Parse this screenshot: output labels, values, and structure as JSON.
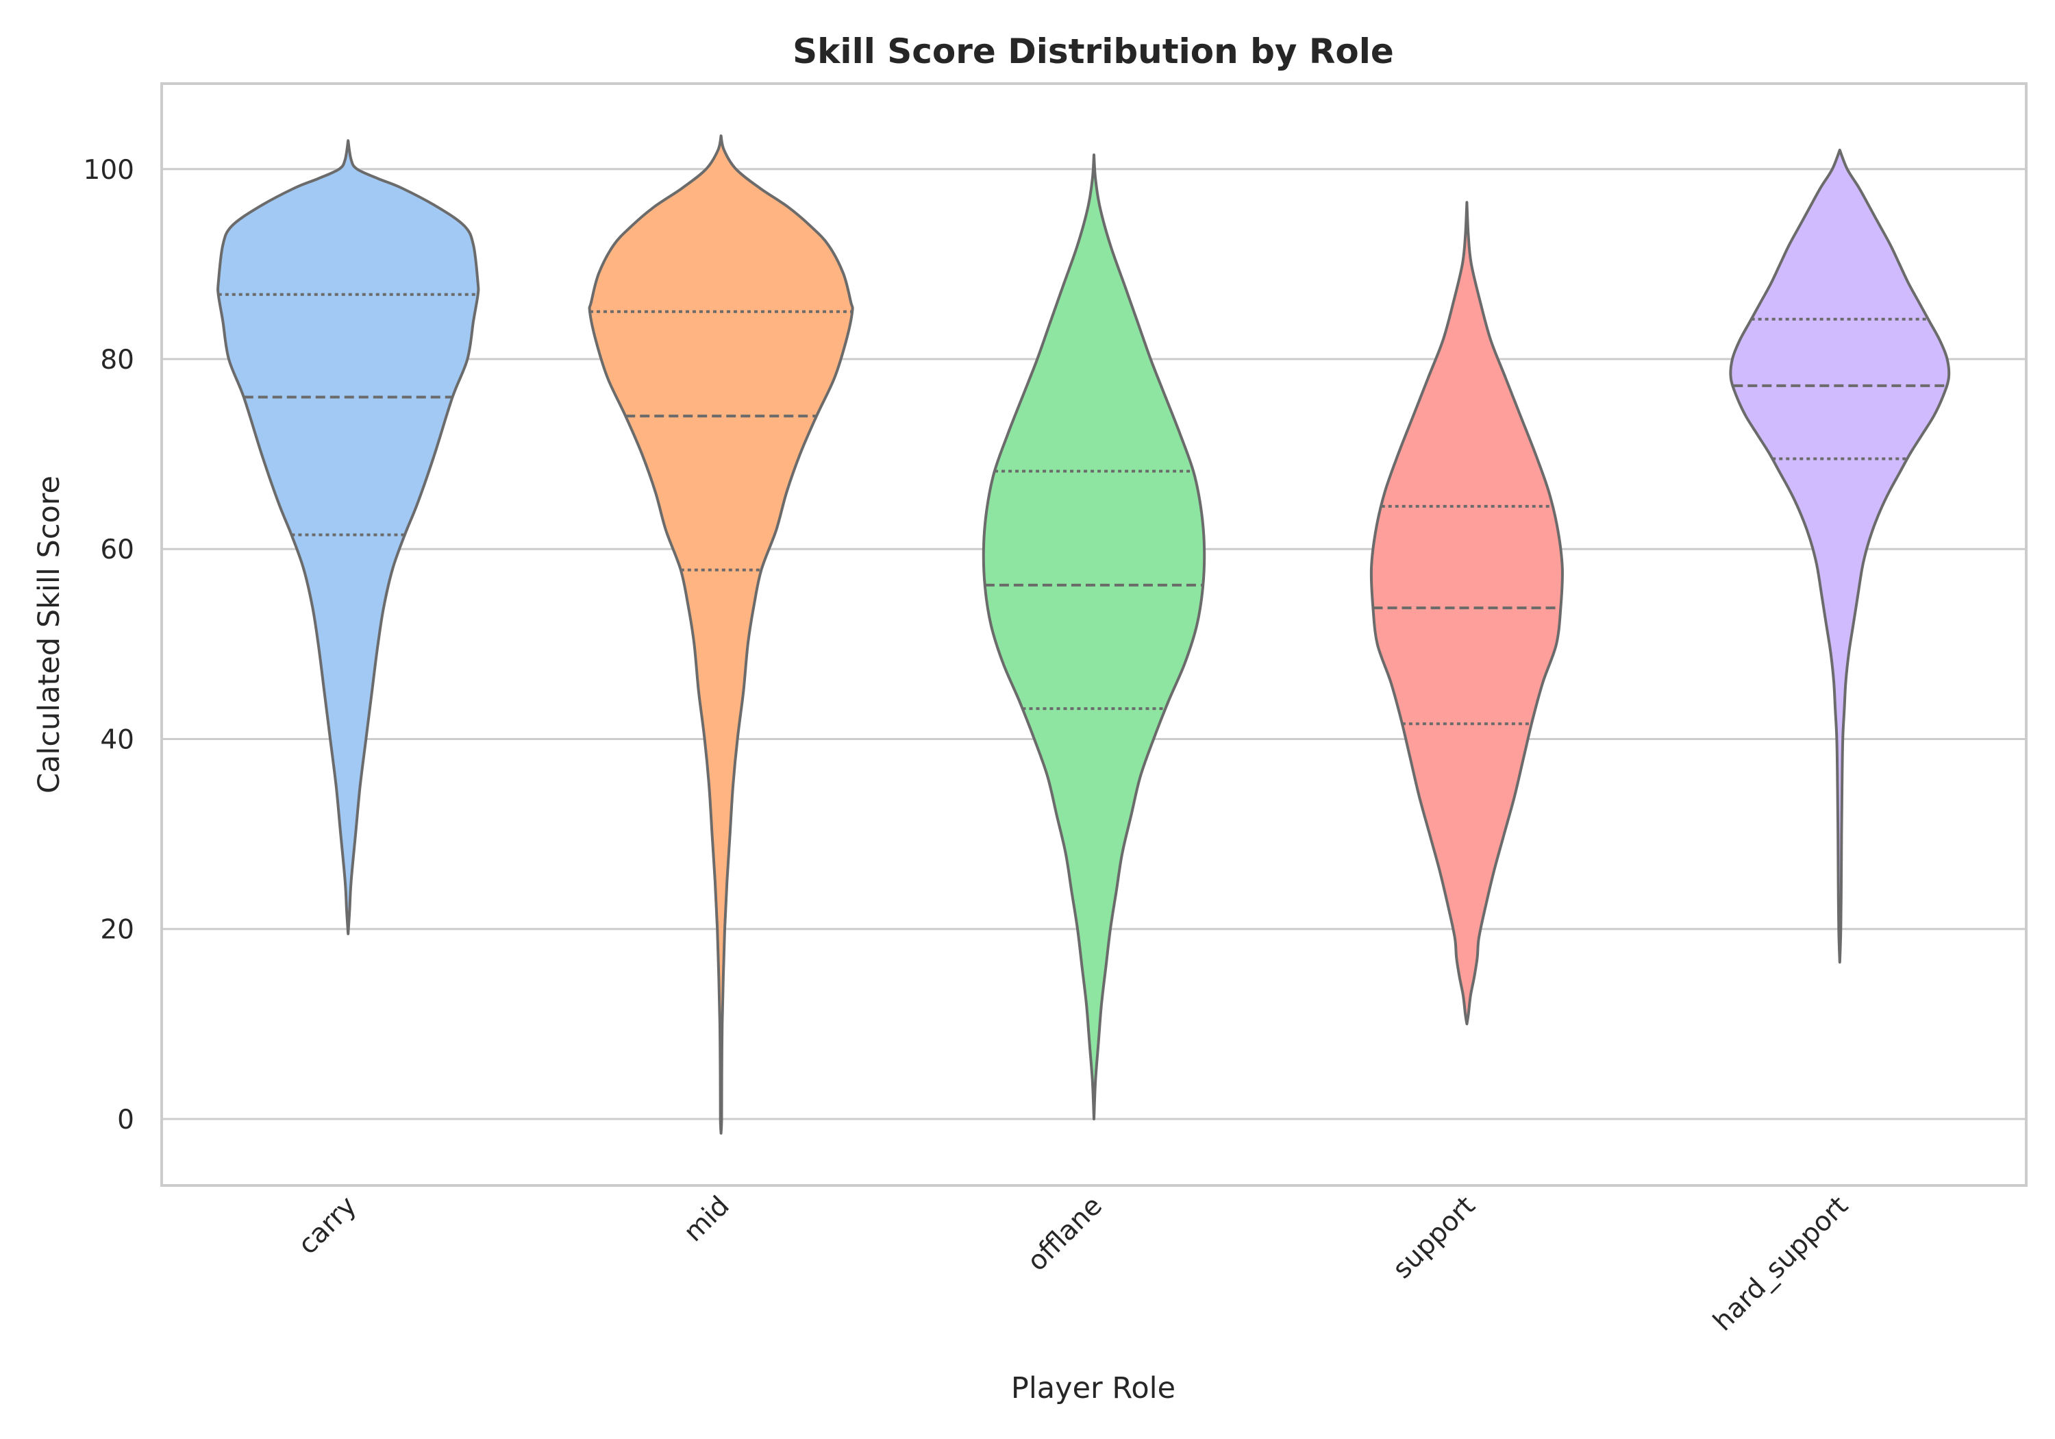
{
  "chart_data": {
    "type": "violin",
    "title": "Skill Score Distribution by Role",
    "xlabel": "Player Role",
    "ylabel": "Calculated Skill Score",
    "ylim": [
      -7,
      109
    ],
    "yticks": [
      0,
      20,
      40,
      60,
      80,
      100
    ],
    "grid": true,
    "categories": [
      "carry",
      "mid",
      "offlane",
      "support",
      "hard_support"
    ],
    "colors": [
      "#a1c9f4",
      "#ffb482",
      "#8de5a1",
      "#ff9f9b",
      "#d0bbff"
    ],
    "edge_color": "#6b6b6b",
    "series": [
      {
        "category": "carry",
        "min": 19.5,
        "max": 103,
        "q1": 61.5,
        "median": 76,
        "q3": 86.8,
        "profile": [
          [
            103,
            0.0
          ],
          [
            101,
            0.02
          ],
          [
            100,
            0.06
          ],
          [
            99,
            0.2
          ],
          [
            98,
            0.36
          ],
          [
            96,
            0.6
          ],
          [
            94,
            0.78
          ],
          [
            92,
            0.84
          ],
          [
            88,
            0.87
          ],
          [
            86.8,
            0.87
          ],
          [
            84,
            0.84
          ],
          [
            80,
            0.8
          ],
          [
            76,
            0.7
          ],
          [
            70,
            0.58
          ],
          [
            65,
            0.47
          ],
          [
            61.5,
            0.38
          ],
          [
            58,
            0.3
          ],
          [
            54,
            0.24
          ],
          [
            50,
            0.2
          ],
          [
            45,
            0.16
          ],
          [
            40,
            0.12
          ],
          [
            35,
            0.08
          ],
          [
            30,
            0.05
          ],
          [
            25,
            0.02
          ],
          [
            22,
            0.01
          ],
          [
            19.5,
            0.0
          ]
        ]
      },
      {
        "category": "mid",
        "min": -1.5,
        "max": 103.5,
        "q1": 57.8,
        "median": 74,
        "q3": 85,
        "profile": [
          [
            103.5,
            0.0
          ],
          [
            102,
            0.02
          ],
          [
            100,
            0.1
          ],
          [
            98,
            0.26
          ],
          [
            96,
            0.45
          ],
          [
            94,
            0.6
          ],
          [
            92,
            0.72
          ],
          [
            89,
            0.82
          ],
          [
            86,
            0.87
          ],
          [
            85,
            0.88
          ],
          [
            82,
            0.84
          ],
          [
            78,
            0.76
          ],
          [
            74,
            0.64
          ],
          [
            70,
            0.53
          ],
          [
            66,
            0.44
          ],
          [
            62,
            0.37
          ],
          [
            57.8,
            0.27
          ],
          [
            54,
            0.22
          ],
          [
            50,
            0.18
          ],
          [
            45,
            0.15
          ],
          [
            40,
            0.11
          ],
          [
            35,
            0.08
          ],
          [
            30,
            0.06
          ],
          [
            25,
            0.04
          ],
          [
            20,
            0.025
          ],
          [
            15,
            0.015
          ],
          [
            10,
            0.008
          ],
          [
            5,
            0.005
          ],
          [
            0,
            0.004
          ],
          [
            -1.5,
            0.0
          ]
        ]
      },
      {
        "category": "offlane",
        "min": 0,
        "max": 101.5,
        "q1": 43.2,
        "median": 56.2,
        "q3": 68.2,
        "profile": [
          [
            101.5,
            0.0
          ],
          [
            99,
            0.01
          ],
          [
            96,
            0.04
          ],
          [
            92,
            0.11
          ],
          [
            88,
            0.2
          ],
          [
            84,
            0.29
          ],
          [
            80,
            0.38
          ],
          [
            76,
            0.48
          ],
          [
            72,
            0.58
          ],
          [
            68,
            0.67
          ],
          [
            64,
            0.72
          ],
          [
            60,
            0.74
          ],
          [
            56,
            0.73
          ],
          [
            52,
            0.69
          ],
          [
            48,
            0.61
          ],
          [
            44,
            0.5
          ],
          [
            40,
            0.4
          ],
          [
            36,
            0.31
          ],
          [
            32,
            0.25
          ],
          [
            28,
            0.19
          ],
          [
            24,
            0.15
          ],
          [
            20,
            0.11
          ],
          [
            16,
            0.08
          ],
          [
            12,
            0.05
          ],
          [
            8,
            0.03
          ],
          [
            4,
            0.01
          ],
          [
            0,
            0.0
          ]
        ]
      },
      {
        "category": "support",
        "min": 10,
        "max": 96.5,
        "q1": 41.6,
        "median": 53.8,
        "q3": 64.5,
        "profile": [
          [
            96.5,
            0.0
          ],
          [
            93,
            0.01
          ],
          [
            90,
            0.03
          ],
          [
            86,
            0.09
          ],
          [
            82,
            0.16
          ],
          [
            78,
            0.26
          ],
          [
            74,
            0.36
          ],
          [
            70,
            0.46
          ],
          [
            66,
            0.55
          ],
          [
            62,
            0.61
          ],
          [
            58,
            0.64
          ],
          [
            54,
            0.63
          ],
          [
            50,
            0.6
          ],
          [
            46,
            0.51
          ],
          [
            42,
            0.44
          ],
          [
            38,
            0.38
          ],
          [
            34,
            0.32
          ],
          [
            30,
            0.25
          ],
          [
            26,
            0.18
          ],
          [
            22,
            0.12
          ],
          [
            19,
            0.08
          ],
          [
            17,
            0.07
          ],
          [
            15,
            0.05
          ],
          [
            13,
            0.025
          ],
          [
            11,
            0.01
          ],
          [
            10,
            0.0
          ]
        ]
      },
      {
        "category": "hard_support",
        "min": 16.5,
        "max": 102,
        "q1": 69.5,
        "median": 77.2,
        "q3": 84.2,
        "profile": [
          [
            102,
            0.0
          ],
          [
            100,
            0.05
          ],
          [
            98,
            0.13
          ],
          [
            96,
            0.2
          ],
          [
            94,
            0.27
          ],
          [
            92,
            0.34
          ],
          [
            90,
            0.4
          ],
          [
            88,
            0.46
          ],
          [
            86,
            0.53
          ],
          [
            84,
            0.6
          ],
          [
            82,
            0.67
          ],
          [
            80,
            0.72
          ],
          [
            78,
            0.73
          ],
          [
            76,
            0.69
          ],
          [
            74,
            0.63
          ],
          [
            72,
            0.55
          ],
          [
            70,
            0.47
          ],
          [
            68,
            0.4
          ],
          [
            66,
            0.33
          ],
          [
            64,
            0.27
          ],
          [
            62,
            0.22
          ],
          [
            60,
            0.18
          ],
          [
            58,
            0.15
          ],
          [
            55,
            0.12
          ],
          [
            52,
            0.09
          ],
          [
            49,
            0.06
          ],
          [
            46,
            0.04
          ],
          [
            43,
            0.03
          ],
          [
            40,
            0.02
          ],
          [
            35,
            0.015
          ],
          [
            30,
            0.012
          ],
          [
            25,
            0.01
          ],
          [
            20,
            0.007
          ],
          [
            16.5,
            0.0
          ]
        ]
      }
    ]
  }
}
